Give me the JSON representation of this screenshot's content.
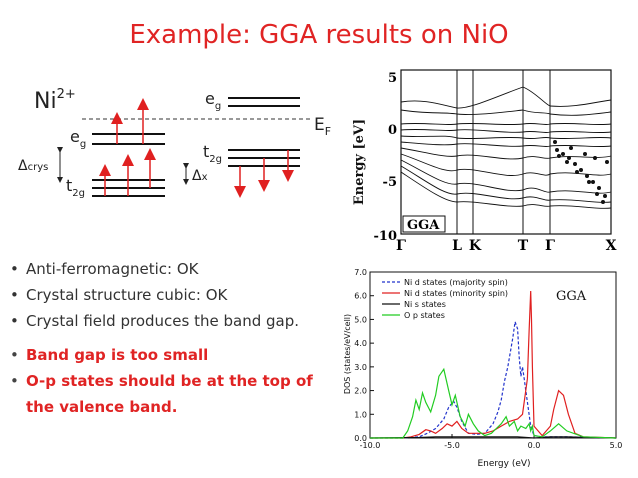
{
  "slide": {
    "title": "Example: GGA results on NiO"
  },
  "level_diagram": {
    "ion": "Ni",
    "ion_charge": "2+",
    "eg_left": "e",
    "eg_left_sub": "g",
    "t2g_left": "t",
    "t2g_left_sub": "2g",
    "eg_right": "e",
    "eg_right_sub": "g",
    "t2g_right": "t",
    "t2g_right_sub": "2g",
    "delta_crys": "Δ",
    "delta_crys_sub": "crys",
    "delta_x": "Δ",
    "delta_x_sub": "x",
    "fermi": "E",
    "fermi_sub": "F"
  },
  "band_structure": {
    "ylabel": "Energy [eV]",
    "yticks": [
      "5",
      "0",
      "-5",
      "-10"
    ],
    "kpoints": [
      "Γ",
      "L",
      "K",
      "T",
      "Γ",
      "X"
    ],
    "legend": "GGA"
  },
  "bullets": [
    "Anti-ferromagnetic: OK",
    "Crystal structure cubic: OK",
    "Crystal field produces the band gap.",
    "Band gap is too small",
    "O-p states should be at the top of",
    "the valence band."
  ],
  "chart_data": {
    "type": "line",
    "title": "",
    "tag": "GGA",
    "xlabel": "Energy (eV)",
    "ylabel": "DOS (states/eV/cell)",
    "xlim": [
      -10.0,
      5.0
    ],
    "ylim": [
      0.0,
      7.0
    ],
    "xticks": [
      "-10.0",
      "-5.0",
      "0.0",
      "5.0"
    ],
    "yticks": [
      "0.0",
      "1.0",
      "2.0",
      "3.0",
      "4.0",
      "5.0",
      "6.0",
      "7.0"
    ],
    "legend_position": "top",
    "series": [
      {
        "name": "Ni d states (majority spin)",
        "color": "#2233cc",
        "style": "dashed",
        "x": [
          -10,
          -8,
          -7,
          -6.5,
          -6.0,
          -5.5,
          -5.2,
          -4.9,
          -4.7,
          -4.4,
          -4.0,
          -3.5,
          -3.0,
          -2.5,
          -2.2,
          -2.0,
          -1.8,
          -1.6,
          -1.3,
          -1.15,
          -1.0,
          -0.9,
          -0.8,
          -0.7,
          -0.6,
          -0.5,
          -0.3,
          -0.2,
          0,
          0.5,
          2,
          5
        ],
        "y": [
          0,
          0,
          0.05,
          0.2,
          0.4,
          0.8,
          1.3,
          1.55,
          1.3,
          0.7,
          0.2,
          0.15,
          0.2,
          0.6,
          1.1,
          1.6,
          2.4,
          3.0,
          4.2,
          4.9,
          4.6,
          3.4,
          2.6,
          3.0,
          2.5,
          2.0,
          1.0,
          0.5,
          0.1,
          0.05,
          0.05,
          0
        ]
      },
      {
        "name": "Ni d states (minority spin)",
        "color": "#e02020",
        "style": "solid",
        "x": [
          -10,
          -8,
          -7.5,
          -7.0,
          -6.6,
          -6.3,
          -6.0,
          -5.6,
          -5.3,
          -5.0,
          -4.7,
          -4.4,
          -4.0,
          -3.0,
          -2.5,
          -2.0,
          -1.5,
          -1.0,
          -0.7,
          -0.4,
          -0.3,
          -0.2,
          -0.15,
          -0.1,
          0,
          0.5,
          1.0,
          1.2,
          1.5,
          1.8,
          2.1,
          2.5,
          3,
          5
        ],
        "y": [
          0,
          0,
          0.05,
          0.15,
          0.35,
          0.3,
          0.2,
          0.4,
          0.6,
          0.5,
          0.7,
          0.4,
          0.2,
          0.2,
          0.3,
          0.5,
          0.7,
          0.8,
          1.0,
          2.5,
          4.5,
          6.2,
          5.0,
          3.0,
          0.5,
          0.1,
          0.5,
          1.2,
          2.0,
          1.8,
          1.0,
          0.2,
          0.05,
          0
        ]
      },
      {
        "name": "Ni s states",
        "color": "#111111",
        "style": "solid",
        "x": [
          -10,
          -7,
          -6,
          -5,
          -4,
          -3,
          -2,
          -1,
          0,
          1,
          2,
          3,
          5
        ],
        "y": [
          0,
          0.02,
          0.05,
          0.05,
          0.05,
          0.05,
          0.05,
          0.05,
          0,
          0.05,
          0.05,
          0.03,
          0
        ]
      },
      {
        "name": "O p states",
        "color": "#22cc22",
        "style": "solid",
        "x": [
          -10,
          -8,
          -7.7,
          -7.4,
          -7.2,
          -7.0,
          -6.8,
          -6.6,
          -6.3,
          -6.0,
          -5.8,
          -5.5,
          -5.2,
          -5.0,
          -4.8,
          -4.5,
          -4.2,
          -4.0,
          -3.7,
          -3.4,
          -3.0,
          -2.6,
          -2.3,
          -2.0,
          -1.7,
          -1.5,
          -1.2,
          -1.0,
          -0.8,
          -0.5,
          -0.3,
          -0.2,
          -0.1,
          0,
          0.5,
          1.0,
          1.5,
          2.0,
          3,
          5
        ],
        "y": [
          0,
          0,
          0.3,
          0.9,
          1.6,
          1.2,
          1.9,
          1.5,
          1.1,
          1.8,
          2.6,
          2.9,
          2.0,
          1.4,
          1.8,
          0.9,
          0.5,
          1.0,
          0.6,
          0.3,
          0.1,
          0.2,
          0.4,
          0.6,
          0.9,
          0.5,
          0.7,
          0.3,
          0.5,
          0.4,
          0.6,
          0.3,
          0.5,
          0.1,
          0.05,
          0.3,
          0.6,
          0.3,
          0.05,
          0
        ]
      }
    ]
  }
}
